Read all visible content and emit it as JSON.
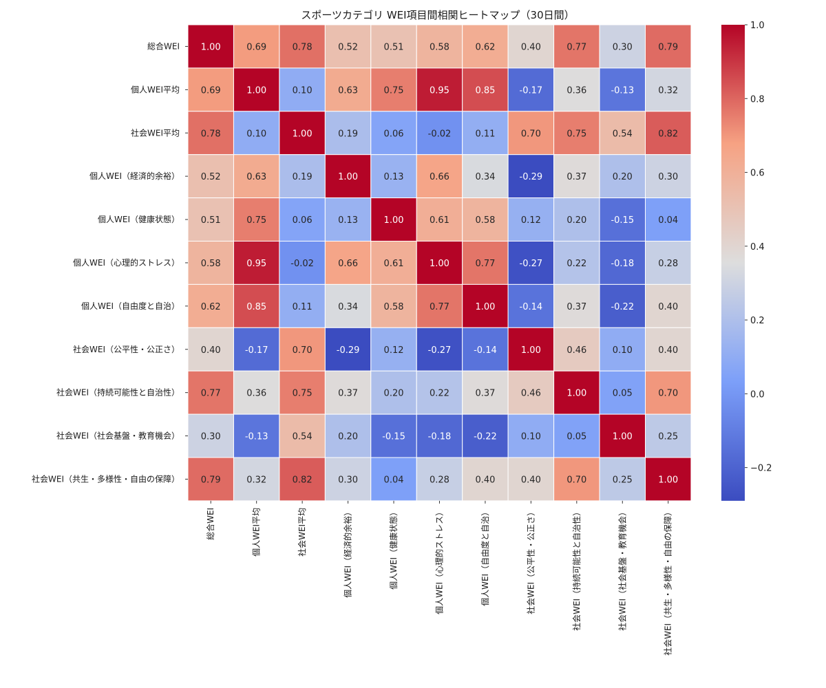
{
  "chart_data": {
    "type": "heatmap",
    "title": "スポーツカテゴリ WEI項目間相関ヒートマップ（30日間）",
    "rows": [
      "総合WEI",
      "個人WEI平均",
      "社会WEI平均",
      "個人WEI（経済的余裕）",
      "個人WEI（健康状態）",
      "個人WEI（心理的ストレス）",
      "個人WEI（自由度と自治）",
      "社会WEI（公平性・公正さ）",
      "社会WEI（持続可能性と自治性）",
      "社会WEI（社会基盤・教育機会）",
      "社会WEI（共生・多様性・自由の保障）"
    ],
    "columns": [
      "総合WEI",
      "個人WEI平均",
      "社会WEI平均",
      "個人WEI（経済的余裕）",
      "個人WEI（健康状態）",
      "個人WEI（心理的ストレス）",
      "個人WEI（自由度と自治）",
      "社会WEI（公平性・公正さ）",
      "社会WEI（持続可能性と自治性）",
      "社会WEI（社会基盤・教育機会）",
      "社会WEI（共生・多様性・自由の保障）"
    ],
    "values": [
      [
        1.0,
        0.69,
        0.78,
        0.52,
        0.51,
        0.58,
        0.62,
        0.4,
        0.77,
        0.3,
        0.79
      ],
      [
        0.69,
        1.0,
        0.1,
        0.63,
        0.75,
        0.95,
        0.85,
        -0.17,
        0.36,
        -0.13,
        0.32
      ],
      [
        0.78,
        0.1,
        1.0,
        0.19,
        0.06,
        -0.02,
        0.11,
        0.7,
        0.75,
        0.54,
        0.82
      ],
      [
        0.52,
        0.63,
        0.19,
        1.0,
        0.13,
        0.66,
        0.34,
        -0.29,
        0.37,
        0.2,
        0.3
      ],
      [
        0.51,
        0.75,
        0.06,
        0.13,
        1.0,
        0.61,
        0.58,
        0.12,
        0.2,
        -0.15,
        0.04
      ],
      [
        0.58,
        0.95,
        -0.02,
        0.66,
        0.61,
        1.0,
        0.77,
        -0.27,
        0.22,
        -0.18,
        0.28
      ],
      [
        0.62,
        0.85,
        0.11,
        0.34,
        0.58,
        0.77,
        1.0,
        -0.14,
        0.37,
        -0.22,
        0.4
      ],
      [
        0.4,
        -0.17,
        0.7,
        -0.29,
        0.12,
        -0.27,
        -0.14,
        1.0,
        0.46,
        0.1,
        0.4
      ],
      [
        0.77,
        0.36,
        0.75,
        0.37,
        0.2,
        0.22,
        0.37,
        0.46,
        1.0,
        0.05,
        0.7
      ],
      [
        0.3,
        -0.13,
        0.54,
        0.2,
        -0.15,
        -0.18,
        -0.22,
        0.1,
        0.05,
        1.0,
        0.25
      ],
      [
        0.79,
        0.32,
        0.82,
        0.3,
        0.04,
        0.28,
        0.4,
        0.4,
        0.7,
        0.25,
        1.0
      ]
    ],
    "colormap": "coolwarm",
    "vmin": -0.29,
    "vmax": 1.0,
    "annot_format": "0.00",
    "colorbar": {
      "ticks": [
        -0.2,
        0.0,
        0.2,
        0.4,
        0.6,
        0.8,
        1.0
      ],
      "tick_labels": [
        "−0.2",
        "0.0",
        "0.2",
        "0.4",
        "0.6",
        "0.8",
        "1.0"
      ],
      "placement": "right"
    },
    "grid": false,
    "cell_border_color": "#ffffff"
  }
}
